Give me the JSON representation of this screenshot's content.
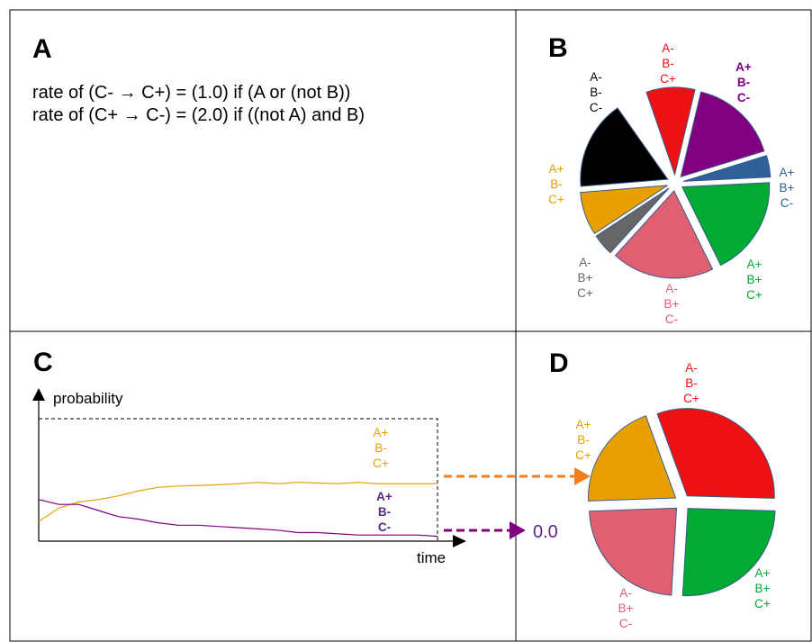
{
  "panels": {
    "A": {
      "letter": "A",
      "rules": [
        "rate of (C- → C+) = (1.0) if (A or (not B))",
        "rate of (C+ → C-) = (2.0) if ((not A) and B)"
      ]
    },
    "B": {
      "letter": "B"
    },
    "C": {
      "letter": "C",
      "y_label": "probability",
      "x_label": "time",
      "zero_value": "0.0"
    },
    "D": {
      "letter": "D"
    }
  },
  "colors": {
    "red": "#ee1111",
    "purple": "#800080",
    "blue": "#2e6099",
    "green": "#00aa33",
    "pink": "#e06070",
    "gray": "#666666",
    "orange": "#e8a000",
    "black": "#000000",
    "orange_arrow": "#f08020",
    "purple_label": "#5a2a82"
  },
  "pie_B": {
    "slices": [
      {
        "state": [
          "A-",
          "B-",
          "C+"
        ],
        "color": "red",
        "fraction": 0.09
      },
      {
        "state": [
          "A+",
          "B-",
          "C-"
        ],
        "color": "purple",
        "fraction": 0.165,
        "bold_label": true
      },
      {
        "state": [
          "A+",
          "B+",
          "C-"
        ],
        "color": "blue",
        "fraction": 0.04
      },
      {
        "state": [
          "A+",
          "B+",
          "C+"
        ],
        "color": "green",
        "fraction": 0.185
      },
      {
        "state": [
          "A-",
          "B+",
          "C-"
        ],
        "color": "pink",
        "fraction": 0.19
      },
      {
        "state": [
          "A-",
          "B+",
          "C+"
        ],
        "color": "gray",
        "fraction": 0.04
      },
      {
        "state": [
          "A+",
          "B-",
          "C+"
        ],
        "color": "orange",
        "fraction": 0.08
      },
      {
        "state": [
          "A-",
          "B-",
          "C-"
        ],
        "color": "black",
        "fraction": 0.165
      }
    ]
  },
  "pie_D": {
    "slices": [
      {
        "state": [
          "A-",
          "B-",
          "C+"
        ],
        "color": "red",
        "fraction": 0.31
      },
      {
        "state": [
          "A+",
          "B+",
          "C+"
        ],
        "color": "green",
        "fraction": 0.255
      },
      {
        "state": [
          "A-",
          "B+",
          "C-"
        ],
        "color": "pink",
        "fraction": 0.235
      },
      {
        "state": [
          "A+",
          "B-",
          "C+"
        ],
        "color": "orange",
        "fraction": 0.2
      }
    ]
  },
  "chart_data": {
    "type": "line",
    "title": "",
    "xlabel": "time",
    "ylabel": "probability",
    "x": [
      0,
      0.05,
      0.1,
      0.15,
      0.2,
      0.25,
      0.3,
      0.35,
      0.4,
      0.45,
      0.5,
      0.55,
      0.6,
      0.65,
      0.7,
      0.75,
      0.8,
      0.85,
      0.9,
      0.95,
      1.0
    ],
    "ylim": [
      0,
      1
    ],
    "series": [
      {
        "name_lines": [
          "A+",
          "B-",
          "C+"
        ],
        "color": "orange",
        "values": [
          0.16,
          0.27,
          0.32,
          0.34,
          0.37,
          0.41,
          0.44,
          0.45,
          0.455,
          0.46,
          0.47,
          0.48,
          0.47,
          0.48,
          0.475,
          0.47,
          0.48,
          0.47,
          0.47,
          0.47,
          0.47
        ]
      },
      {
        "name_lines": [
          "A+",
          "B-",
          "C-"
        ],
        "color": "purple",
        "bold_label": true,
        "values": [
          0.34,
          0.3,
          0.3,
          0.25,
          0.2,
          0.18,
          0.15,
          0.13,
          0.13,
          0.12,
          0.11,
          0.1,
          0.09,
          0.07,
          0.07,
          0.06,
          0.05,
          0.05,
          0.05,
          0.05,
          0.04
        ]
      }
    ]
  }
}
